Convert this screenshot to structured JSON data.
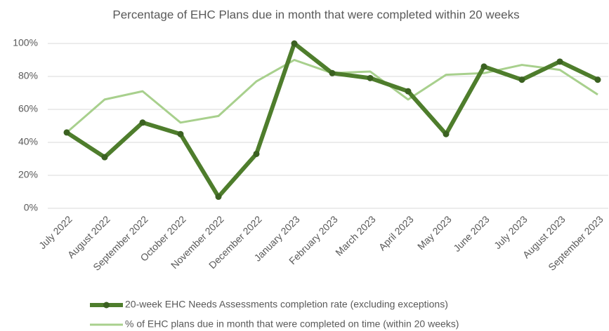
{
  "chart_data": {
    "type": "line",
    "title": "Percentage of EHC Plans due in month that were completed within 20 weeks",
    "categories": [
      "July 2022",
      "August 2022",
      "September 2022",
      "October 2022",
      "November 2022",
      "December 2022",
      "January 2023",
      "February 2023",
      "March 2023",
      "April 2023",
      "May 2023",
      "June 2023",
      "July 2023",
      "August 2023",
      "September 2023"
    ],
    "series": [
      {
        "name": "20-week EHC Needs Assessments completion rate (excluding exceptions)",
        "color": "#4e7d2c",
        "markers": true,
        "values": [
          46,
          31,
          52,
          45,
          7,
          33,
          100,
          82,
          79,
          71,
          45,
          86,
          78,
          89,
          78
        ]
      },
      {
        "name": "% of EHC plans due in month that were completed on time (within 20 weeks)",
        "color": "#a8d08d",
        "markers": false,
        "values": [
          46,
          66,
          71,
          52,
          56,
          77,
          90,
          82,
          83,
          66,
          81,
          82,
          87,
          84,
          69
        ]
      }
    ],
    "ylim": [
      0,
      100
    ],
    "yticks": [
      {
        "value": 0,
        "label": "0%"
      },
      {
        "value": 20,
        "label": "20%"
      },
      {
        "value": 40,
        "label": "40%"
      },
      {
        "value": 60,
        "label": "60%"
      },
      {
        "value": 80,
        "label": "80%"
      },
      {
        "value": 100,
        "label": "100%"
      }
    ],
    "grid": true,
    "legend": "bottom"
  }
}
